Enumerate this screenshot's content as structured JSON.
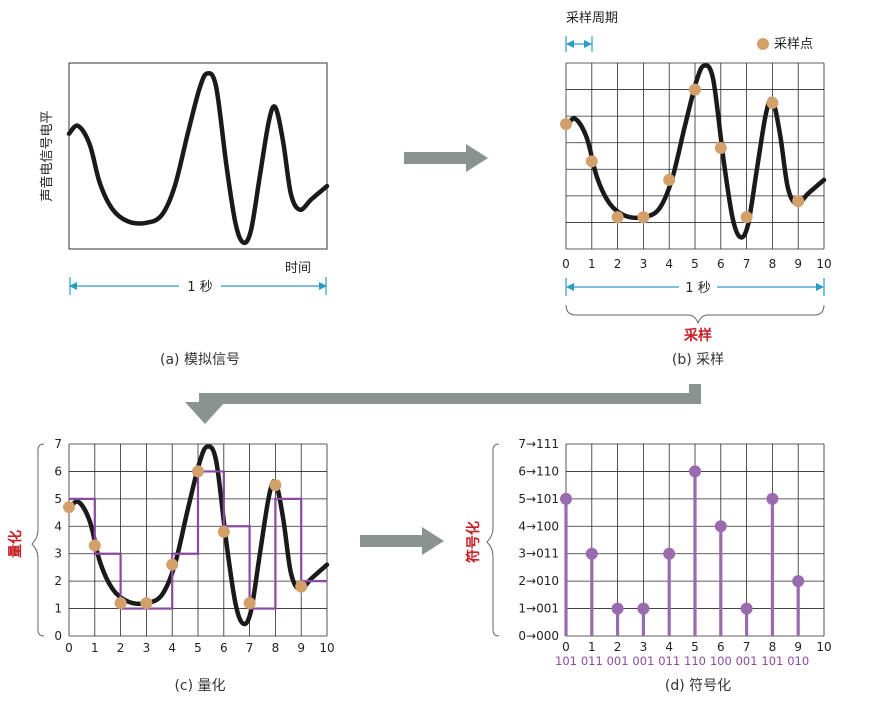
{
  "colors": {
    "signal": "#1a1a1a",
    "sample_point": "#d4a06a",
    "quantized": "#8a4a9e",
    "stem": "#9a6aaf",
    "arrow": "#8a9390",
    "dimension": "#2a9bc3",
    "accent_red": "#c8202a"
  },
  "panel_a": {
    "caption": "(a) 模拟信号",
    "y_label": "声音电信号电平",
    "x_label": "时间",
    "span_label": "1 秒"
  },
  "panel_b": {
    "caption": "(b) 采样",
    "period_label": "采样周期",
    "legend_label": "采样点",
    "span_label": "1 秒",
    "brace_label": "采样",
    "x_ticks": [
      "0",
      "1",
      "2",
      "3",
      "4",
      "5",
      "6",
      "7",
      "8",
      "9",
      "10"
    ],
    "sample_levels": [
      4.7,
      3.3,
      1.2,
      1.2,
      2.6,
      6.0,
      3.8,
      1.2,
      5.5,
      1.8
    ]
  },
  "panel_c": {
    "caption": "(c) 量化",
    "side_label": "量化",
    "x_ticks": [
      "0",
      "1",
      "2",
      "3",
      "4",
      "5",
      "6",
      "7",
      "8",
      "9",
      "10"
    ],
    "y_ticks": [
      "0",
      "1",
      "2",
      "3",
      "4",
      "5",
      "6",
      "7"
    ],
    "sample_levels": [
      4.7,
      3.3,
      1.2,
      1.2,
      2.6,
      6.0,
      3.8,
      1.2,
      5.5,
      1.8
    ],
    "quantized_levels": [
      5,
      3,
      1,
      1,
      3,
      6,
      4,
      1,
      5,
      2
    ]
  },
  "panel_d": {
    "caption": "(d) 符号化",
    "side_label": "符号化",
    "x_ticks": [
      "0",
      "1",
      "2",
      "3",
      "4",
      "5",
      "6",
      "7",
      "8",
      "9",
      "10"
    ],
    "y_ticks": [
      "0→000",
      "1→001",
      "2→010",
      "3→011",
      "4→100",
      "5→101",
      "6→110",
      "7→111"
    ],
    "stem_levels": [
      5,
      3,
      1,
      1,
      3,
      6,
      4,
      1,
      5,
      2
    ],
    "codes": [
      "101",
      "011",
      "001",
      "001",
      "011",
      "110",
      "100",
      "001",
      "101",
      "010"
    ]
  }
}
